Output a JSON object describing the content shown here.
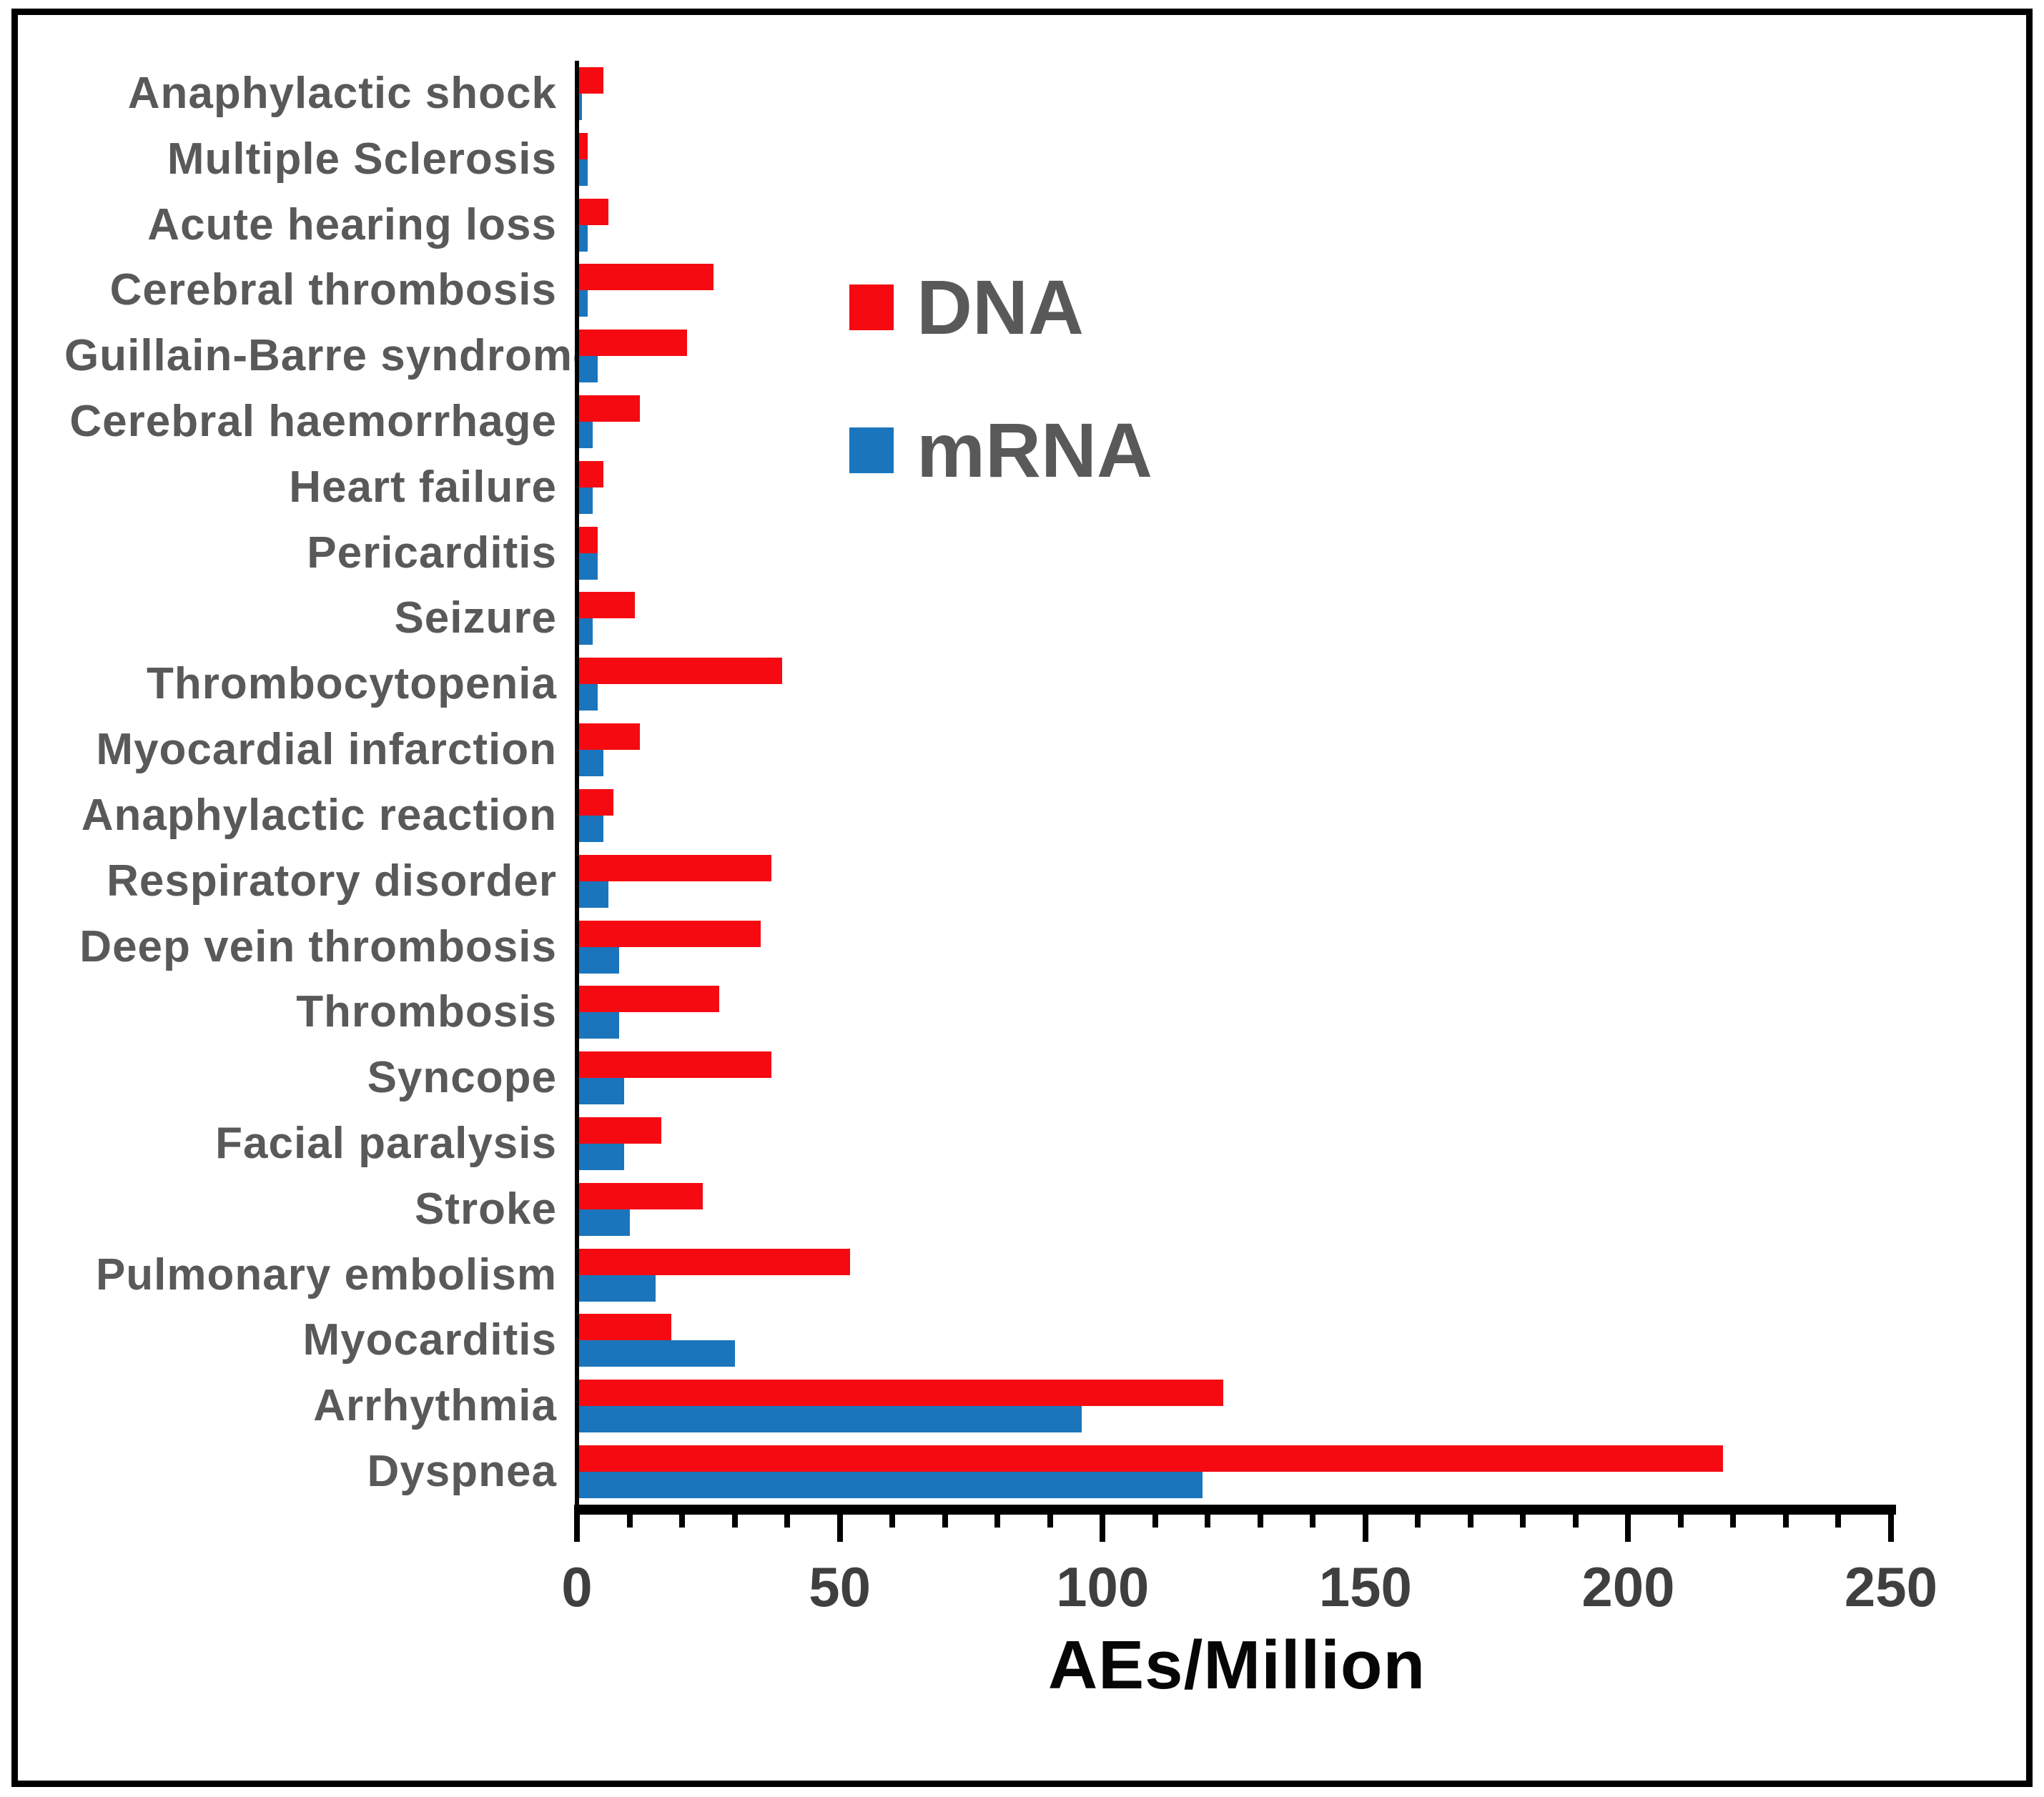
{
  "figure": {
    "background": "#ffffff",
    "border_color": "#000000",
    "text_gray": "#595959",
    "tick_label_color": "#3f3f3f",
    "axis_color": "#000000"
  },
  "legend": {
    "items": [
      {
        "label": "DNA",
        "color": "#f50a12"
      },
      {
        "label": "mRNA",
        "color": "#1b75bc"
      }
    ]
  },
  "chart_data": {
    "type": "bar",
    "orientation": "horizontal",
    "title": "",
    "xlabel": "AEs/Million",
    "ylabel": "",
    "xlim": [
      0,
      250
    ],
    "x_major_ticks": [
      0,
      50,
      100,
      150,
      200,
      250
    ],
    "x_minor_tick_step": 10,
    "grid": false,
    "legend_position": "upper-center-inside",
    "categories": [
      "Anaphylactic shock",
      "Multiple Sclerosis",
      "Acute hearing loss",
      "Cerebral thrombosis",
      "Guillain-Barre syndrome",
      "Cerebral haemorrhage",
      "Heart failure",
      "Pericarditis",
      "Seizure",
      "Thrombocytopenia",
      "Myocardial infarction",
      "Anaphylactic reaction",
      "Respiratory disorder",
      "Deep vein thrombosis",
      "Thrombosis",
      "Syncope",
      "Facial paralysis",
      "Stroke",
      "Pulmonary embolism",
      "Myocarditis",
      "Arrhythmia",
      "Dyspnea"
    ],
    "series": [
      {
        "name": "DNA",
        "color": "#f50a12",
        "values": [
          5,
          2,
          6,
          26,
          21,
          12,
          5,
          4,
          11,
          39,
          12,
          7,
          37,
          35,
          27,
          37,
          16,
          24,
          52,
          18,
          123,
          218
        ]
      },
      {
        "name": "mRNA",
        "color": "#1b75bc",
        "values": [
          1,
          2,
          2,
          2,
          4,
          3,
          3,
          4,
          3,
          4,
          5,
          5,
          6,
          8,
          8,
          9,
          9,
          10,
          15,
          30,
          96,
          119
        ]
      }
    ]
  }
}
